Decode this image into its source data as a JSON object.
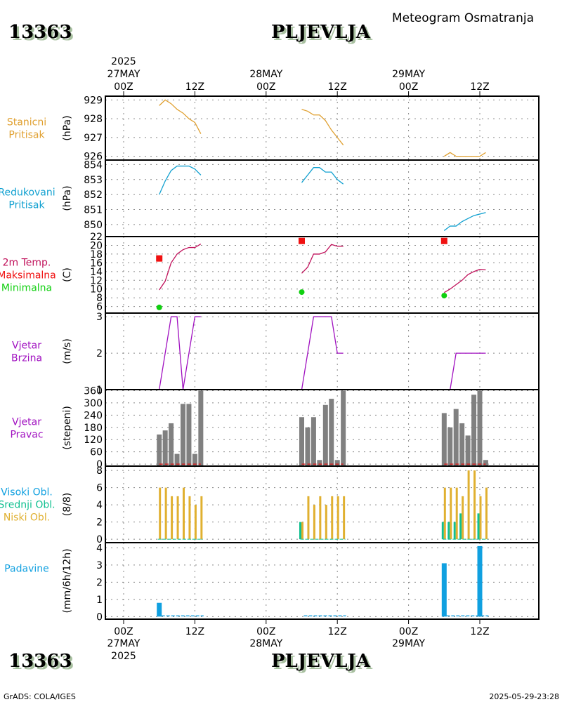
{
  "header": {
    "station_id": "13363",
    "station_name": "PLJEVLJA",
    "subtitle": "Meteogram Osmatranja"
  },
  "footer": {
    "credit": "GrADS: COLA/IGES",
    "timestamp": "2025-05-29-23:28"
  },
  "colors": {
    "pressure_station": "#e0a030",
    "pressure_reduced": "#10a0d0",
    "temperature": "#c0105a",
    "max_temp": "#f01010",
    "min_temp": "#10d010",
    "wind": "#a010c0",
    "wind_dir_bar": "#808080",
    "clouds_high": "#10a0e0",
    "clouds_mid": "#10c090",
    "clouds_low": "#e0b030",
    "precip": "#10a0e0"
  },
  "chart_data": {
    "type": "line",
    "title": "PLJEVLJA",
    "subtitle": "Meteogram Osmatranja",
    "x_axis": {
      "top_ticks": [
        {
          "hour": 0,
          "label": "00Z",
          "date": "27MAY",
          "year": "2025"
        },
        {
          "hour": 12,
          "label": "12Z"
        },
        {
          "hour": 24,
          "label": "00Z",
          "date": "28MAY"
        },
        {
          "hour": 36,
          "label": "12Z"
        },
        {
          "hour": 48,
          "label": "00Z",
          "date": "29MAY"
        },
        {
          "hour": 60,
          "label": "12Z"
        }
      ],
      "range_hours": [
        -3,
        70
      ]
    },
    "hours": [
      6,
      7,
      8,
      9,
      10,
      11,
      12,
      13,
      30,
      31,
      32,
      33,
      34,
      35,
      36,
      37,
      54,
      55,
      56,
      57,
      58,
      59,
      60,
      61
    ],
    "panels": [
      {
        "id": "station-pressure",
        "labels": [
          "Stanicni",
          "Pritisak"
        ],
        "label_colors": [
          "pressure_station",
          "pressure_station"
        ],
        "unit": "(hPa)",
        "ylim": [
          925.8,
          929.2
        ],
        "yticks": [
          926,
          927,
          928,
          929
        ],
        "type": "line",
        "color": "pressure_station",
        "values": [
          928.7,
          929.0,
          928.8,
          928.5,
          928.3,
          928.0,
          927.8,
          927.2,
          928.5,
          928.4,
          928.2,
          928.2,
          927.9,
          927.4,
          927.0,
          926.6,
          926.0,
          926.2,
          926.0,
          926.0,
          926.0,
          926.0,
          926.0,
          926.2
        ]
      },
      {
        "id": "reduced-pressure",
        "labels": [
          "Redukovani",
          "Pritisak"
        ],
        "label_colors": [
          "pressure_reduced",
          "pressure_reduced"
        ],
        "unit": "(hPa)",
        "ylim": [
          849.2,
          854.3
        ],
        "yticks": [
          850,
          851,
          852,
          853,
          854
        ],
        "type": "line",
        "color": "pressure_reduced",
        "values": [
          852.0,
          852.9,
          853.6,
          853.9,
          853.9,
          853.9,
          853.7,
          853.3,
          852.8,
          853.3,
          853.8,
          853.8,
          853.5,
          853.5,
          853.0,
          852.7,
          849.6,
          849.9,
          849.9,
          850.2,
          850.4,
          850.6,
          850.7,
          850.8
        ]
      },
      {
        "id": "temperature",
        "labels": [
          "2m Temp.",
          "Maksimalna",
          "Minimalna"
        ],
        "label_colors": [
          "temperature",
          "max_temp",
          "min_temp"
        ],
        "unit": "(C)",
        "ylim": [
          4.5,
          22
        ],
        "yticks": [
          6,
          8,
          10,
          12,
          14,
          16,
          18,
          20,
          22
        ],
        "type": "line",
        "color": "temperature",
        "values": [
          9.8,
          11.8,
          16.0,
          18.0,
          19.0,
          19.5,
          19.5,
          20.3,
          13.6,
          15.0,
          18.0,
          18.0,
          18.5,
          20.2,
          19.8,
          19.8,
          9.2,
          10.0,
          11.0,
          12.0,
          13.3,
          14.0,
          14.5,
          14.4
        ],
        "max": [
          {
            "hour": 6,
            "value": 17.0
          },
          {
            "hour": 30,
            "value": 21.0
          },
          {
            "hour": 54,
            "value": 21.0
          }
        ],
        "min": [
          {
            "hour": 6,
            "value": 5.8
          },
          {
            "hour": 30,
            "value": 9.3
          },
          {
            "hour": 54,
            "value": 8.5
          }
        ]
      },
      {
        "id": "wind-speed",
        "labels": [
          "Vjetar",
          "Brzina"
        ],
        "label_colors": [
          "wind",
          "wind"
        ],
        "unit": "(m/s)",
        "ylim": [
          1,
          3.1
        ],
        "yticks": [
          1,
          2,
          3
        ],
        "type": "line",
        "color": "wind",
        "values": [
          1,
          2,
          3,
          3,
          1,
          2,
          3,
          3,
          1,
          2,
          3,
          3,
          3,
          3,
          2,
          2,
          1,
          1,
          2,
          2,
          2,
          2,
          2,
          2
        ]
      },
      {
        "id": "wind-direction",
        "labels": [
          "Vjetar",
          "Pravac"
        ],
        "label_colors": [
          "wind",
          "wind"
        ],
        "unit": "(stepeni)",
        "ylim": [
          -10,
          365
        ],
        "yticks": [
          0,
          60,
          120,
          180,
          240,
          300,
          360
        ],
        "type": "bar",
        "color": "wind_dir_bar",
        "values": [
          145,
          165,
          200,
          50,
          295,
          295,
          50,
          360,
          230,
          180,
          230,
          20,
          290,
          320,
          20,
          360,
          250,
          180,
          270,
          200,
          140,
          340,
          360,
          20
        ]
      },
      {
        "id": "clouds",
        "labels": [
          "Visoki Obl.",
          "Srednji Obl.",
          "Niski Obl."
        ],
        "label_colors": [
          "clouds_high",
          "clouds_mid",
          "clouds_low"
        ],
        "unit": "(8/8)",
        "ylim": [
          -0.4,
          8.5
        ],
        "yticks": [
          0,
          2,
          4,
          6,
          8
        ],
        "type": "bar",
        "series": [
          {
            "name": "Visoki Obl.",
            "color": "clouds_high",
            "values": [
              0,
              0,
              0,
              0,
              0,
              0,
              0,
              0,
              1,
              0,
              0,
              0,
              0,
              0,
              0,
              0,
              0,
              0,
              0,
              0,
              0,
              0,
              0,
              0
            ]
          },
          {
            "name": "Srednji Obl.",
            "color": "clouds_mid",
            "values": [
              0,
              0,
              0,
              0,
              0,
              0,
              0,
              0,
              2,
              0,
              0,
              0,
              0,
              0,
              0,
              0,
              2,
              2,
              2,
              3,
              0,
              0,
              3,
              0
            ]
          },
          {
            "name": "Niski Obl.",
            "color": "clouds_low",
            "values": [
              6,
              6,
              5,
              5,
              6,
              5,
              4,
              5,
              2,
              5,
              4,
              5,
              4,
              5,
              5,
              5,
              6,
              6,
              6,
              5,
              8,
              8,
              5,
              6
            ]
          }
        ]
      },
      {
        "id": "precipitation",
        "labels": [
          "Padavine"
        ],
        "label_colors": [
          "precip"
        ],
        "unit": "(mm/6h/12h)",
        "ylim": [
          -0.15,
          4.3
        ],
        "yticks": [
          0,
          1,
          2,
          3,
          4
        ],
        "type": "bar",
        "color": "precip",
        "values": [
          0.8,
          0,
          0,
          0,
          0,
          0,
          0,
          0,
          0,
          0,
          0,
          0,
          0,
          0,
          0,
          0,
          3.1,
          0,
          0,
          0,
          0,
          0,
          4.1,
          0
        ]
      }
    ]
  }
}
